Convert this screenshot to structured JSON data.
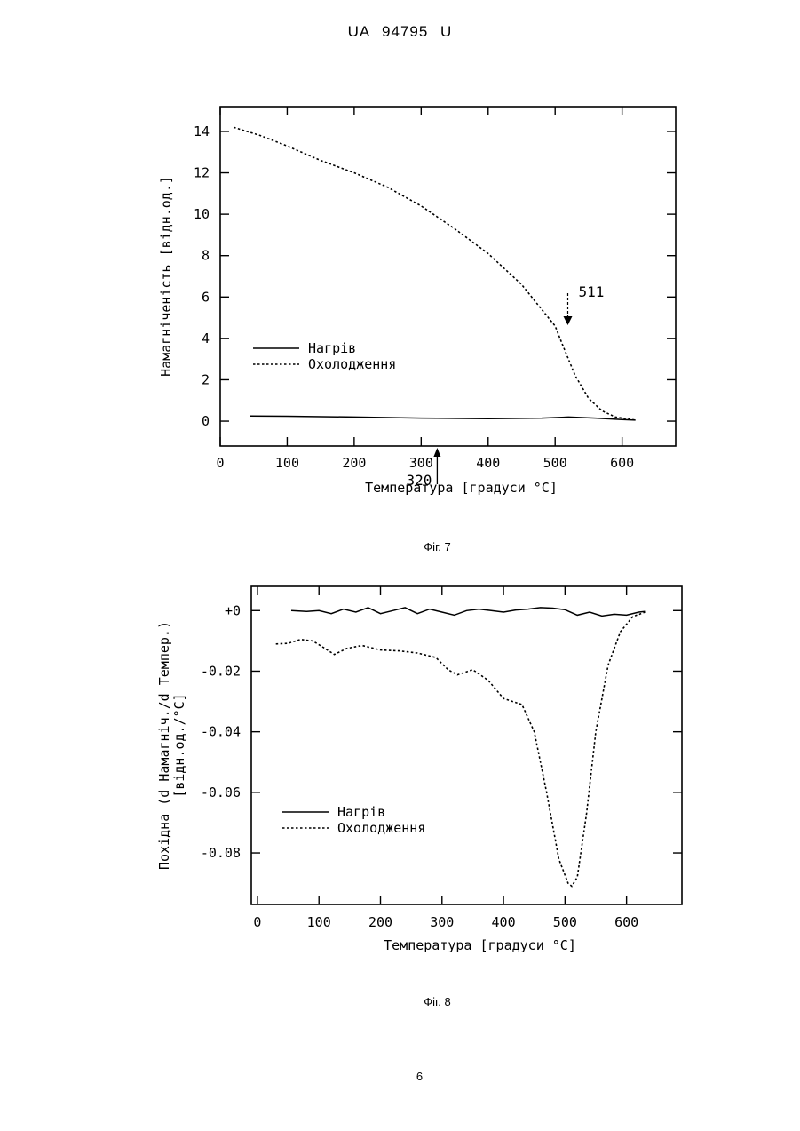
{
  "header": {
    "document_id": "UA   94795   U"
  },
  "figures": [
    {
      "caption": "Фіг. 7",
      "chart_data": {
        "type": "line",
        "xlabel": "Температура [градуси °C]",
        "ylabel": "Намагніченість [відн.од.]",
        "xlim": [
          0,
          680
        ],
        "ylim": [
          -1.2,
          15.2
        ],
        "x_ticks": [
          "0",
          "100",
          "200",
          "300",
          "400",
          "500",
          "600"
        ],
        "y_ticks": [
          "0",
          "2",
          "4",
          "6",
          "8",
          "10",
          "12",
          "14"
        ],
        "legend": {
          "position": "left-middle",
          "entries": [
            "Нагрів",
            "Охолодження"
          ]
        },
        "series": [
          {
            "name": "Нагрів",
            "style": "solid",
            "x": [
              45,
              100,
              200,
              300,
              400,
              480,
              520,
              560,
              600,
              620
            ],
            "y": [
              0.25,
              0.24,
              0.2,
              0.15,
              0.12,
              0.15,
              0.2,
              0.15,
              0.08,
              0.05
            ]
          },
          {
            "name": "Охолодження",
            "style": "dotted",
            "x": [
              20,
              60,
              100,
              150,
              200,
              250,
              300,
              350,
              400,
              450,
              480,
              500,
              511,
              530,
              550,
              570,
              590,
              610,
              620
            ],
            "y": [
              14.2,
              13.8,
              13.3,
              12.6,
              12.0,
              11.3,
              10.4,
              9.3,
              8.1,
              6.6,
              5.4,
              4.6,
              3.7,
              2.2,
              1.1,
              0.5,
              0.2,
              0.1,
              0.05
            ]
          }
        ],
        "annotations": [
          {
            "label": "511",
            "x": 511
          },
          {
            "label": "320",
            "x": 320
          }
        ]
      }
    },
    {
      "caption": "Фіг. 8",
      "chart_data": {
        "type": "line",
        "xlabel": "Температура [градуси °C]",
        "ylabel": "Похідна (d Намагніч./d Темпер.)\n[відн.од./°C]",
        "xlim": [
          -10,
          690
        ],
        "ylim": [
          -0.097,
          0.008
        ],
        "x_ticks": [
          "0",
          "100",
          "200",
          "300",
          "400",
          "500",
          "600"
        ],
        "y_ticks": [
          "+0",
          "-0.02",
          "-0.04",
          "-0.06",
          "-0.08"
        ],
        "legend": {
          "position": "left-lower",
          "entries": [
            "Нагрів",
            "Охолодження"
          ]
        },
        "series": [
          {
            "name": "Нагрів",
            "style": "solid",
            "x": [
              55,
              80,
              100,
              120,
              140,
              160,
              180,
              200,
              220,
              240,
              260,
              280,
              300,
              320,
              340,
              360,
              380,
              400,
              420,
              440,
              460,
              480,
              500,
              520,
              540,
              560,
              580,
              600,
              620,
              630
            ],
            "y": [
              0.0,
              -0.0003,
              0.0,
              -0.001,
              0.0005,
              -0.0005,
              0.001,
              -0.001,
              0.0,
              0.001,
              -0.001,
              0.0005,
              -0.0005,
              -0.0015,
              0.0,
              0.0005,
              0.0,
              -0.0005,
              0.0002,
              0.0005,
              0.001,
              0.0008,
              0.0003,
              -0.0015,
              -0.0005,
              -0.0018,
              -0.0012,
              -0.0015,
              -0.0005,
              -0.0003
            ]
          },
          {
            "name": "Охолодження",
            "style": "dotted",
            "x": [
              30,
              50,
              70,
              90,
              110,
              125,
              145,
              170,
              200,
              230,
              260,
              290,
              310,
              325,
              350,
              375,
              400,
              430,
              450,
              470,
              490,
              505,
              511,
              520,
              535,
              550,
              570,
              590,
              610,
              630
            ],
            "y": [
              -0.011,
              -0.0108,
              -0.0095,
              -0.01,
              -0.0125,
              -0.0145,
              -0.0125,
              -0.0115,
              -0.013,
              -0.0133,
              -0.014,
              -0.0155,
              -0.0195,
              -0.0212,
              -0.0195,
              -0.023,
              -0.029,
              -0.031,
              -0.04,
              -0.06,
              -0.082,
              -0.09,
              -0.091,
              -0.088,
              -0.067,
              -0.04,
              -0.018,
              -0.007,
              -0.002,
              -0.0005
            ]
          }
        ]
      }
    }
  ],
  "page_number": "6"
}
